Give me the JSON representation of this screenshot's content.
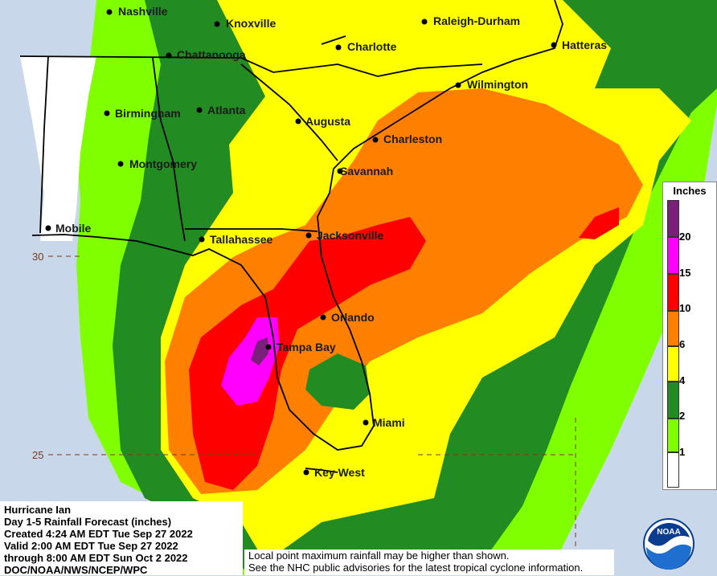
{
  "map": {
    "cities": [
      {
        "id": "nashville",
        "name": "Nashville"
      },
      {
        "id": "knoxville",
        "name": "Knoxville"
      },
      {
        "id": "raleigh-durham",
        "name": "Raleigh-Durham"
      },
      {
        "id": "chattanooga",
        "name": "Chattanooga"
      },
      {
        "id": "charlotte",
        "name": "Charlotte"
      },
      {
        "id": "hatteras",
        "name": "Hatteras"
      },
      {
        "id": "wilmington",
        "name": "Wilmington"
      },
      {
        "id": "birmingham",
        "name": "Birmingham"
      },
      {
        "id": "atlanta",
        "name": "Atlanta"
      },
      {
        "id": "augusta",
        "name": "Augusta"
      },
      {
        "id": "charleston",
        "name": "Charleston"
      },
      {
        "id": "montgomery",
        "name": "Montgomery"
      },
      {
        "id": "savannah",
        "name": "Savannah"
      },
      {
        "id": "mobile",
        "name": "Mobile"
      },
      {
        "id": "tallahassee",
        "name": "Tallahassee"
      },
      {
        "id": "jacksonville",
        "name": "Jacksonville"
      },
      {
        "id": "orlando",
        "name": "Orlando"
      },
      {
        "id": "tampa-bay",
        "name": "Tampa Bay"
      },
      {
        "id": "miami",
        "name": "Miami"
      },
      {
        "id": "key-west",
        "name": "Key West"
      }
    ],
    "latitude_labels": [
      "30",
      "25"
    ]
  },
  "legend": {
    "title": "Inches",
    "ticks": [
      "20",
      "15",
      "10",
      "6",
      "4",
      "2",
      "1"
    ],
    "colors": [
      "#7a1f7a",
      "#ff00ff",
      "#ff0000",
      "#ff8000",
      "#ffff00",
      "#228b22",
      "#80ff00",
      "#ffffff"
    ]
  },
  "info": {
    "lines": [
      "Hurricane Ian",
      "Day 1-5 Rainfall Forecast (inches)",
      "Created 4:24 AM EDT Tue Sep 27 2022",
      "Valid 2:00 AM EDT Tue Sep 27 2022",
      "through 8:00 AM EDT Sun Oct 2 2022",
      "DOC/NOAA/NWS/NCEP/WPC"
    ]
  },
  "disclaimer": {
    "lines": [
      "Local point maximum rainfall may be higher than shown.",
      "See the NHC public advisories for the latest tropical cyclone information."
    ]
  },
  "logo": {
    "text": "NOAA"
  }
}
